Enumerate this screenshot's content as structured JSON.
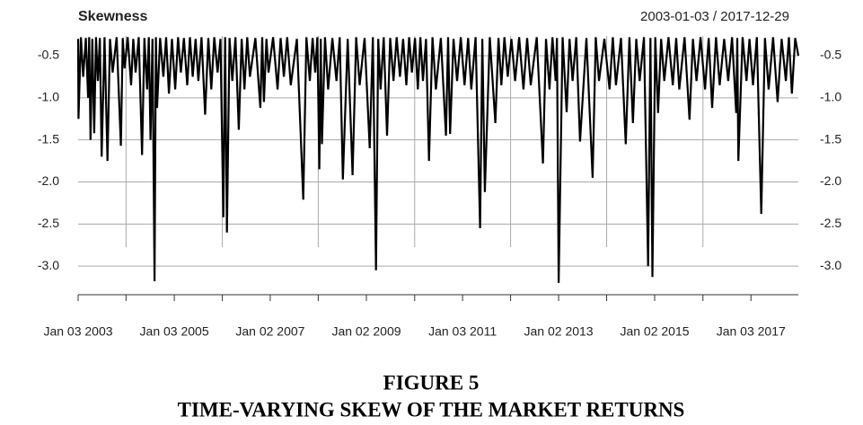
{
  "chart_data": {
    "type": "line",
    "title": "Skewness",
    "date_range": "2003-01-03 / 2017-12-29",
    "caption": [
      "FIGURE 5",
      "TIME-VARYING SKEW OF THE MARKET RETURNS"
    ],
    "xlim": [
      "2003-01-03",
      "2017-12-29"
    ],
    "xticks": [
      {
        "value": "2003-01-03",
        "label": "Jan 03 2003"
      },
      {
        "value": "2005-01-03",
        "label": "Jan 03 2005"
      },
      {
        "value": "2007-01-02",
        "label": "Jan 02 2007"
      },
      {
        "value": "2009-01-02",
        "label": "Jan 02 2009"
      },
      {
        "value": "2011-01-03",
        "label": "Jan 03 2011"
      },
      {
        "value": "2013-01-02",
        "label": "Jan 02 2013"
      },
      {
        "value": "2015-01-02",
        "label": "Jan 02 2015"
      },
      {
        "value": "2017-01-03",
        "label": "Jan 03 2017"
      }
    ],
    "xgrid": [
      "2004-01-02",
      "2006-01-03",
      "2008-01-02",
      "2010-01-04",
      "2012-01-03",
      "2014-01-02",
      "2016-01-04"
    ],
    "ylim": [
      -3.34,
      -0.265
    ],
    "yticks": [
      -0.5,
      {
        "value": -1,
        "label": "-1.0"
      },
      -1.5,
      {
        "value": -2,
        "label": "-2.0"
      },
      -2.5,
      {
        "value": -3,
        "label": "-3.0"
      }
    ],
    "grid": true,
    "series": [
      {
        "name": "Skewness",
        "color": "#000000",
        "x": [
          "2003-01-03",
          "2003-01-06",
          "2003-01-24",
          "2003-02-10",
          "2003-03-03",
          "2003-03-20",
          "2003-03-28",
          "2003-04-07",
          "2003-04-21",
          "2003-05-05",
          "2003-05-19",
          "2003-06-02",
          "2003-06-17",
          "2003-07-01",
          "2003-07-23",
          "2003-08-14",
          "2003-09-02",
          "2003-09-22",
          "2003-10-23",
          "2003-11-24",
          "2003-12-08",
          "2003-12-22",
          "2004-01-15",
          "2004-02-10",
          "2004-02-26",
          "2004-03-15",
          "2004-04-08",
          "2004-05-03",
          "2004-05-21",
          "2004-06-10",
          "2004-06-23",
          "2004-07-06",
          "2004-07-21",
          "2004-08-06",
          "2004-08-16",
          "2004-08-25",
          "2004-09-17",
          "2004-10-12",
          "2004-11-02",
          "2004-11-23",
          "2004-12-16",
          "2005-01-10",
          "2005-02-01",
          "2005-02-22",
          "2005-03-17",
          "2005-04-11",
          "2005-05-02",
          "2005-05-23",
          "2005-06-14",
          "2005-07-05",
          "2005-07-29",
          "2005-08-25",
          "2005-09-19",
          "2005-10-11",
          "2005-11-03",
          "2005-11-28",
          "2005-12-20",
          "2006-01-11",
          "2006-01-24",
          "2006-02-07",
          "2006-02-27",
          "2006-03-20",
          "2006-04-13",
          "2006-05-08",
          "2006-05-30",
          "2006-06-20",
          "2006-07-11",
          "2006-08-01",
          "2006-09-11",
          "2006-10-19",
          "2006-11-02",
          "2006-11-15",
          "2006-12-04",
          "2006-12-20",
          "2007-01-24",
          "2007-02-27",
          "2007-03-22",
          "2007-04-16",
          "2007-05-11",
          "2007-06-07",
          "2007-07-24",
          "2007-09-10",
          "2007-10-04",
          "2007-10-30",
          "2007-11-20",
          "2007-12-10",
          "2007-12-26",
          "2008-01-10",
          "2008-01-21",
          "2008-01-30",
          "2008-02-22",
          "2008-03-17",
          "2008-04-18",
          "2008-05-20",
          "2008-06-13",
          "2008-07-07",
          "2008-08-13",
          "2008-09-19",
          "2008-10-16",
          "2008-11-12",
          "2008-12-19",
          "2009-01-27",
          "2009-02-20",
          "2009-03-16",
          "2009-04-02",
          "2009-04-20",
          "2009-05-14",
          "2009-06-08",
          "2009-07-02",
          "2009-07-27",
          "2009-08-20",
          "2009-09-14",
          "2009-10-08",
          "2009-11-02",
          "2009-11-23",
          "2009-12-14",
          "2010-01-06",
          "2010-01-28",
          "2010-02-16",
          "2010-03-08",
          "2010-03-31",
          "2010-04-23",
          "2010-05-19",
          "2010-06-14",
          "2010-07-22",
          "2010-08-30",
          "2010-09-15",
          "2010-09-30",
          "2010-10-26",
          "2010-11-22",
          "2010-12-20",
          "2011-01-18",
          "2011-02-14",
          "2011-03-10",
          "2011-04-12",
          "2011-05-16",
          "2011-06-02",
          "2011-06-21",
          "2011-07-29",
          "2011-09-09",
          "2011-10-03",
          "2011-10-25",
          "2011-11-17",
          "2011-12-12",
          "2012-01-09",
          "2012-02-06",
          "2012-03-08",
          "2012-04-10",
          "2012-05-08",
          "2012-06-04",
          "2012-07-20",
          "2012-09-05",
          "2012-09-28",
          "2012-10-25",
          "2012-11-16",
          "2012-12-10",
          "2012-12-20",
          "2013-01-02",
          "2013-02-01",
          "2013-03-04",
          "2013-03-26",
          "2013-04-18",
          "2013-05-16",
          "2013-06-14",
          "2013-08-01",
          "2013-09-17",
          "2013-10-11",
          "2013-11-05",
          "2013-12-16",
          "2014-01-24",
          "2014-02-18",
          "2014-03-14",
          "2014-04-21",
          "2014-05-27",
          "2014-06-24",
          "2014-07-21",
          "2014-08-15",
          "2014-09-10",
          "2014-10-13",
          "2014-11-13",
          "2014-12-01",
          "2014-12-16",
          "2015-01-07",
          "2015-01-28",
          "2015-02-20",
          "2015-03-16",
          "2015-04-17",
          "2015-05-20",
          "2015-06-15",
          "2015-07-08",
          "2015-08-17",
          "2015-09-24",
          "2015-10-20",
          "2015-11-16",
          "2015-12-17",
          "2016-01-20",
          "2016-02-17",
          "2016-03-14",
          "2016-04-12",
          "2016-05-10",
          "2016-06-13",
          "2016-07-14",
          "2016-08-12",
          "2016-09-13",
          "2016-09-21",
          "2016-09-29",
          "2016-10-31",
          "2016-11-30",
          "2016-12-23",
          "2017-01-18",
          "2017-02-17",
          "2017-03-22",
          "2017-04-19",
          "2017-05-17",
          "2017-06-20",
          "2017-07-24",
          "2017-08-24",
          "2017-09-25",
          "2017-10-18",
          "2017-11-10",
          "2017-12-05",
          "2017-12-29"
        ],
        "values": [
          -0.3,
          -1.25,
          -0.28,
          -0.75,
          -0.29,
          -1.0,
          -0.28,
          -1.5,
          -0.3,
          -1.42,
          -0.28,
          -0.8,
          -0.29,
          -1.7,
          -0.28,
          -1.75,
          -0.3,
          -0.7,
          -0.28,
          -1.57,
          -0.29,
          -0.65,
          -0.28,
          -0.85,
          -0.3,
          -0.7,
          -0.28,
          -1.68,
          -0.29,
          -0.9,
          -0.28,
          -1.5,
          -0.3,
          -3.18,
          -0.28,
          -1.12,
          -0.29,
          -0.75,
          -0.28,
          -0.95,
          -0.3,
          -0.9,
          -0.28,
          -0.7,
          -0.29,
          -0.85,
          -0.28,
          -0.75,
          -0.3,
          -0.8,
          -0.28,
          -1.2,
          -0.29,
          -0.9,
          -0.28,
          -0.7,
          -0.3,
          -2.42,
          -0.28,
          -2.6,
          -0.29,
          -0.8,
          -0.28,
          -1.38,
          -0.3,
          -0.9,
          -0.28,
          -0.75,
          -0.29,
          -1.12,
          -0.28,
          -1.05,
          -0.3,
          -0.7,
          -0.28,
          -0.9,
          -0.29,
          -0.75,
          -0.28,
          -0.85,
          -0.3,
          -2.21,
          -0.28,
          -0.8,
          -0.29,
          -0.7,
          -0.28,
          -1.85,
          -0.3,
          -1.55,
          -0.28,
          -0.9,
          -0.29,
          -0.8,
          -0.28,
          -1.97,
          -0.3,
          -1.92,
          -0.28,
          -0.85,
          -0.29,
          -1.6,
          -0.28,
          -3.05,
          -0.3,
          -0.9,
          -0.28,
          -1.45,
          -0.29,
          -0.8,
          -0.28,
          -0.75,
          -0.3,
          -0.85,
          -0.28,
          -0.7,
          -0.29,
          -0.9,
          -0.28,
          -0.8,
          -0.3,
          -1.75,
          -0.28,
          -0.9,
          -0.29,
          -1.45,
          -0.28,
          -1.43,
          -0.3,
          -0.8,
          -0.28,
          -0.85,
          -0.29,
          -0.9,
          -0.28,
          -2.55,
          -0.3,
          -2.12,
          -0.28,
          -1.3,
          -0.29,
          -0.85,
          -0.28,
          -0.75,
          -0.3,
          -0.8,
          -0.28,
          -0.9,
          -0.29,
          -0.85,
          -0.28,
          -1.78,
          -0.3,
          -0.9,
          -0.28,
          -0.8,
          -0.29,
          -3.2,
          -0.28,
          -1.17,
          -0.3,
          -0.8,
          -0.28,
          -1.52,
          -0.29,
          -1.95,
          -0.28,
          -0.8,
          -0.3,
          -0.9,
          -0.28,
          -0.85,
          -0.29,
          -1.55,
          -0.28,
          -1.3,
          -0.3,
          -0.8,
          -0.28,
          -3.0,
          -0.29,
          -3.13,
          -0.28,
          -1.18,
          -0.3,
          -0.8,
          -0.28,
          -0.85,
          -0.29,
          -0.9,
          -0.28,
          -1.26,
          -0.3,
          -0.8,
          -0.28,
          -0.9,
          -0.29,
          -1.12,
          -0.28,
          -0.85,
          -0.3,
          -0.8,
          -0.28,
          -1.18,
          -0.29,
          -1.75,
          -0.28,
          -0.8,
          -0.3,
          -0.85,
          -0.28,
          -2.38,
          -0.29,
          -0.9,
          -0.28,
          -1.05,
          -0.3,
          -0.8,
          -0.28,
          -0.95,
          -0.29,
          -0.5
        ]
      }
    ]
  }
}
